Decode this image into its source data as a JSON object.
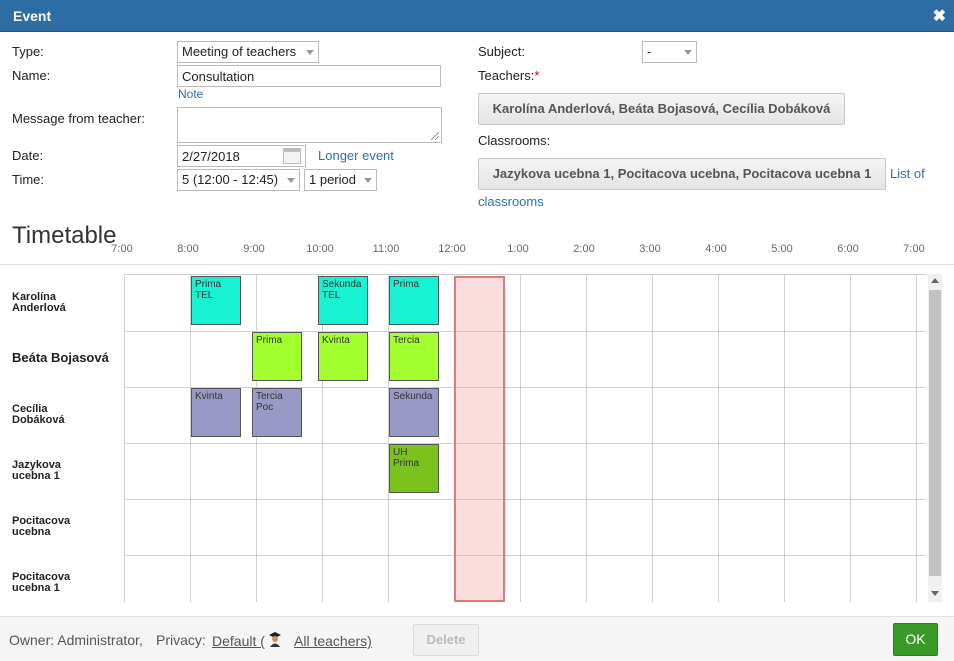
{
  "window": {
    "title": "Event",
    "close_glyph": "✖"
  },
  "form": {
    "type_label": "Type:",
    "type_value": "Meeting of teachers",
    "name_label": "Name:",
    "name_value": "Consultation",
    "note_link": "Note",
    "message_label": "Message from teacher:",
    "message_value": "",
    "date_label": "Date:",
    "date_value": "2/27/2018",
    "longer_event_link": "Longer event",
    "time_label": "Time:",
    "time_value": "5 (12:00 - 12:45)",
    "period_value": "1 period",
    "subject_label": "Subject:",
    "subject_value": "-",
    "teachers_label": "Teachers:",
    "teachers_required": "*",
    "teachers_value": "Karolína Anderlová, Beáta Bojasová, Cecília Dobáková",
    "classrooms_label": "Classrooms:",
    "classrooms_value": "Jazykova ucebna 1, Pocitacova ucebna, Pocitacova ucebna 1",
    "list_of_link": "List of",
    "classrooms_link": "classrooms"
  },
  "timetable": {
    "title": "Timetable",
    "hours": [
      "7:00",
      "8:00",
      "9:00",
      "10:00",
      "11:00",
      "12:00",
      "1:00",
      "2:00",
      "3:00",
      "4:00",
      "5:00",
      "6:00",
      "7:00"
    ],
    "rows": [
      {
        "line1": "Karolína",
        "line2": "Anderlová"
      },
      {
        "line1": "Beáta Bojasová",
        "line2": ""
      },
      {
        "line1": "Cecília",
        "line2": "Dobáková"
      },
      {
        "line1": "Jazykova",
        "line2": "ucebna 1"
      },
      {
        "line1": "Pocitacova",
        "line2": "ucebna"
      },
      {
        "line1": "Pocitacova",
        "line2": "ucebna 1"
      }
    ],
    "events": [
      {
        "row": 0,
        "hour": 8,
        "line1": "Prima",
        "line2": "TEL",
        "color": "#17f2d2"
      },
      {
        "row": 0,
        "hour": 10,
        "line1": "Sekunda",
        "line2": "TEL",
        "color": "#17f2d2"
      },
      {
        "row": 0,
        "hour": 11,
        "line1": "Prima",
        "line2": "",
        "color": "#17f2d2"
      },
      {
        "row": 1,
        "hour": 9,
        "line1": "Prima",
        "line2": "",
        "color": "#a4ff2e"
      },
      {
        "row": 1,
        "hour": 10,
        "line1": "Kvinta",
        "line2": "",
        "color": "#a4ff2e"
      },
      {
        "row": 1,
        "hour": 11,
        "line1": "Tercia",
        "line2": "",
        "color": "#a4ff2e"
      },
      {
        "row": 2,
        "hour": 8,
        "line1": "Kvinta",
        "line2": "",
        "color": "#9999c6"
      },
      {
        "row": 2,
        "hour": 9,
        "line1": "Tercia",
        "line2": "Poc",
        "color": "#9999c6"
      },
      {
        "row": 2,
        "hour": 11,
        "line1": "Sekunda",
        "line2": "",
        "color": "#9999c6"
      },
      {
        "row": 3,
        "hour": 11,
        "line1": "UH Prima",
        "line2": "",
        "color": "#7cc21d"
      }
    ],
    "selected_slot_hour": 12
  },
  "footer": {
    "owner_text": "Owner: Administrator,",
    "privacy_label": "Privacy:",
    "privacy_link_prefix": "Default (",
    "privacy_link_suffix": "All teachers)",
    "delete_label": "Delete",
    "ok_label": "OK"
  }
}
